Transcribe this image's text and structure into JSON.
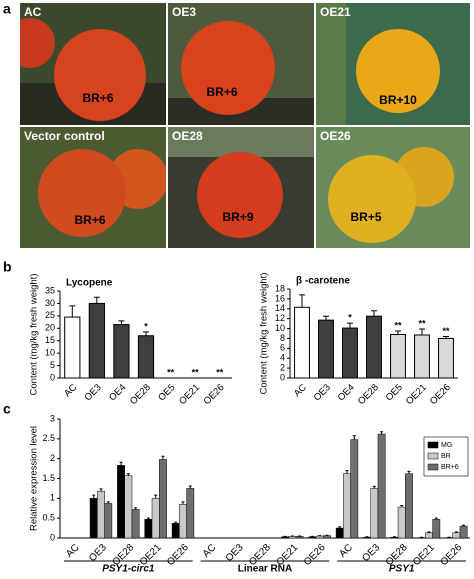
{
  "panel_labels": [
    "a",
    "b",
    "c"
  ],
  "photos": [
    {
      "label": "AC",
      "stage": "BR+6"
    },
    {
      "label": "OE3",
      "stage": "BR+6"
    },
    {
      "label": "OE21",
      "stage": "BR+10"
    },
    {
      "label": "Vector control",
      "stage": "BR+6"
    },
    {
      "label": "OE28",
      "stage": "BR+9"
    },
    {
      "label": "OE26",
      "stage": "BR+5"
    }
  ],
  "chart_data": [
    {
      "type": "bar",
      "title": "Lycopene",
      "y_label": "Content (mg/kg fresh weight)",
      "categories": [
        "AC",
        "OE3",
        "OE4",
        "OE28",
        "OE5",
        "OE21",
        "OE26"
      ],
      "values": [
        24.5,
        30,
        21.5,
        17,
        0,
        0,
        0
      ],
      "errors": [
        4.5,
        2.5,
        1.5,
        1.5,
        0,
        0,
        0
      ],
      "significance": [
        null,
        null,
        null,
        "*",
        "**",
        "**",
        "**"
      ],
      "colors": [
        "#ffffff",
        "#3f3f3f",
        "#3f3f3f",
        "#3f3f3f",
        "#d9d9d9",
        "#d9d9d9",
        "#d9d9d9"
      ],
      "ylim": [
        0,
        35
      ],
      "yticks": [
        0,
        5,
        10,
        15,
        20,
        25,
        30,
        35
      ]
    },
    {
      "type": "bar",
      "title": "β -carotene",
      "y_label": "Content (mg/kg fresh weight)",
      "categories": [
        "AC",
        "OE3",
        "OE4",
        "OE28",
        "OE5",
        "OE21",
        "OE26"
      ],
      "values": [
        14.3,
        11.7,
        10.1,
        12.5,
        8.8,
        8.7,
        8.0
      ],
      "errors": [
        2.5,
        0.8,
        1.0,
        1.1,
        0.7,
        1.2,
        0.4
      ],
      "significance": [
        null,
        null,
        "*",
        null,
        "**",
        "**",
        "**"
      ],
      "colors": [
        "#ffffff",
        "#3f3f3f",
        "#3f3f3f",
        "#3f3f3f",
        "#d9d9d9",
        "#d9d9d9",
        "#d9d9d9"
      ],
      "ylim": [
        0,
        18
      ],
      "yticks": [
        0,
        2,
        4,
        6,
        8,
        10,
        12,
        14,
        16,
        18
      ]
    },
    {
      "type": "grouped_bar",
      "y_label": "Relative expression level",
      "categories": [
        "AC",
        "OE3",
        "OE28",
        "OE21",
        "OE26",
        "AC",
        "OE3",
        "OE28",
        "OE21",
        "OE26",
        "AC",
        "OE3",
        "OE28",
        "OE21",
        "OE26"
      ],
      "groups": [
        "PSY1-circ1",
        "Linear RNA",
        "PSY1"
      ],
      "series": [
        {
          "name": "MG",
          "color": "#000000",
          "values": [
            0,
            1.0,
            1.83,
            0.47,
            0.37,
            0,
            0,
            0,
            0.03,
            0.03,
            0.25,
            0.02,
            0.02,
            0.01,
            0.01
          ],
          "errors": [
            0,
            0.08,
            0.08,
            0.03,
            0.03,
            0,
            0,
            0,
            0.01,
            0.01,
            0.03,
            0.01,
            0.01,
            0.01,
            0.01
          ]
        },
        {
          "name": "BR",
          "color": "#c8c8c8",
          "values": [
            0,
            1.18,
            1.57,
            1.0,
            0.85,
            0,
            0,
            0,
            0.04,
            0.05,
            1.62,
            1.25,
            0.78,
            0.13,
            0.13
          ],
          "errors": [
            0,
            0.06,
            0.05,
            0.08,
            0.06,
            0,
            0,
            0,
            0.01,
            0.01,
            0.08,
            0.05,
            0.04,
            0.02,
            0.02
          ]
        },
        {
          "name": "BR+6",
          "color": "#6e6e6e",
          "values": [
            0,
            0.87,
            0.72,
            1.98,
            1.25,
            0,
            0,
            0,
            0.04,
            0.06,
            2.48,
            2.62,
            1.62,
            0.47,
            0.3
          ],
          "errors": [
            0,
            0.04,
            0.04,
            0.08,
            0.06,
            0,
            0,
            0,
            0.01,
            0.01,
            0.1,
            0.06,
            0.06,
            0.03,
            0.02
          ]
        }
      ],
      "legend": "upper right",
      "ylim": [
        0,
        3
      ],
      "yticks": [
        0,
        0.5,
        1,
        1.5,
        2,
        2.5,
        3
      ]
    }
  ]
}
